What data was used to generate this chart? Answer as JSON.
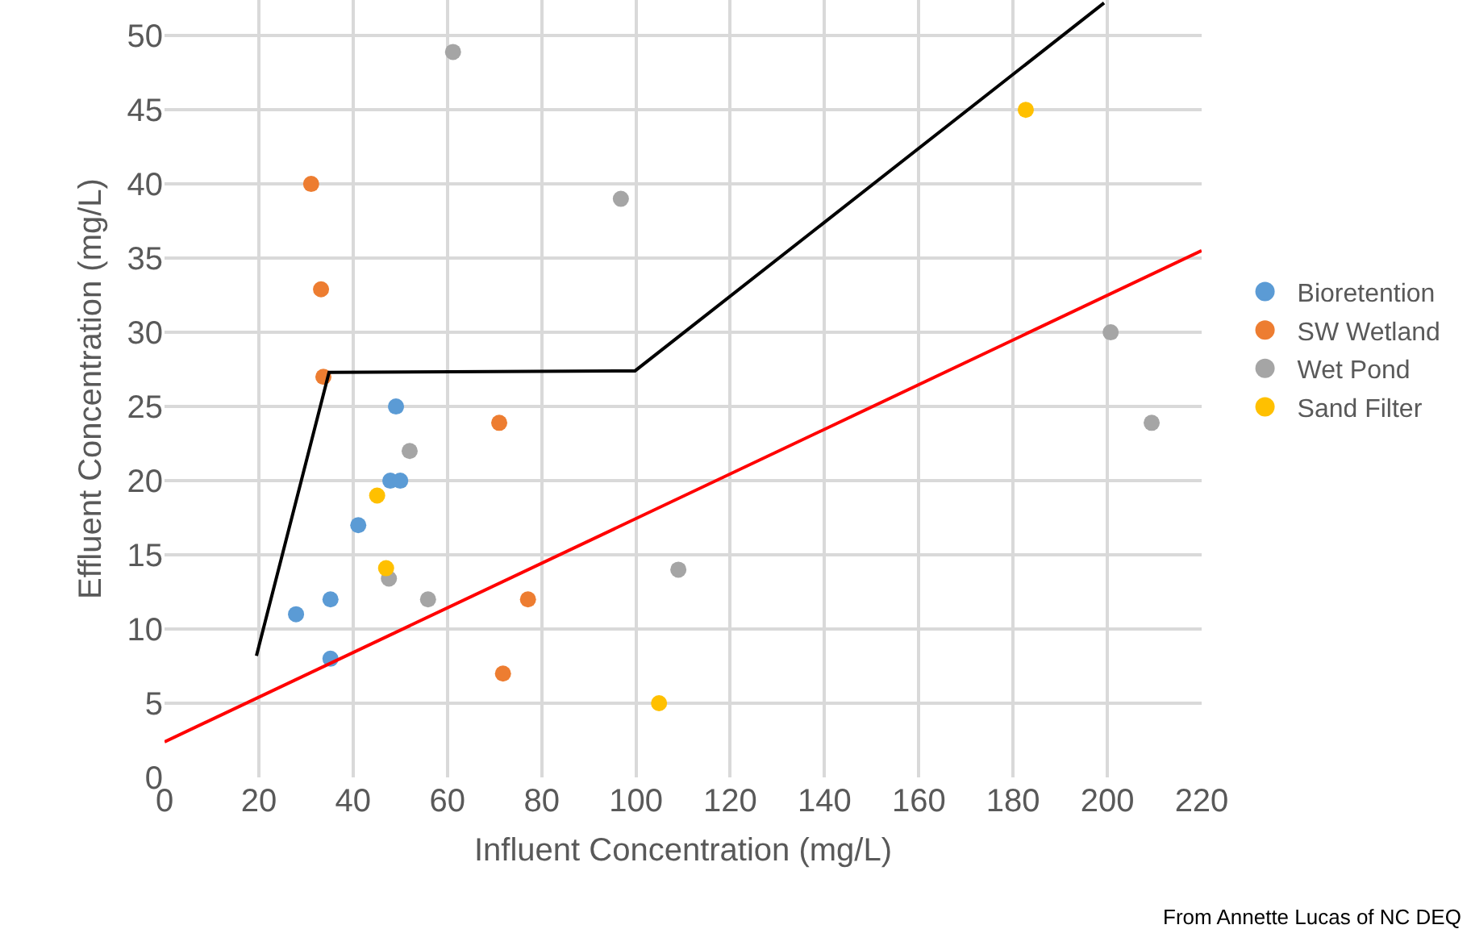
{
  "chart_data": {
    "type": "scatter",
    "xlabel": "Influent Concentration (mg/L)",
    "ylabel": "Effluent Concentration (mg/L)",
    "annotations": [
      "From Annette Lucas of NC DEQ"
    ],
    "xlim": [
      0,
      220
    ],
    "xticks": [
      0,
      20,
      40,
      60,
      80,
      100,
      120,
      140,
      160,
      180,
      200,
      220
    ],
    "ylim": [
      0,
      52.4
    ],
    "yticks": [
      0,
      5,
      10,
      15,
      20,
      25,
      30,
      35,
      40,
      45,
      50
    ],
    "grid": true,
    "legend": "right",
    "marker": "circle",
    "series": [
      {
        "name": "Bioretention",
        "color": "#5b9bd5",
        "x": [
          27.9,
          35.2,
          35.2,
          41.1,
          47.9,
          50.0,
          49.1
        ],
        "values": [
          11.0,
          12.0,
          8.0,
          17.0,
          20.0,
          20.0,
          25.0
        ]
      },
      {
        "name": "SW Wetland",
        "color": "#ed7d31",
        "x": [
          31.1,
          33.2,
          33.7,
          71.0,
          77.1,
          71.8
        ],
        "values": [
          40.0,
          32.9,
          27.0,
          23.9,
          12.0,
          7.0
        ]
      },
      {
        "name": "Wet Pond",
        "color": "#a5a5a5",
        "x": [
          61.2,
          96.8,
          52.0,
          47.6,
          55.9,
          109.0,
          200.7,
          209.4
        ],
        "values": [
          48.9,
          39.0,
          22.0,
          13.4,
          12.0,
          14.0,
          30.0,
          23.9
        ]
      },
      {
        "name": "Sand Filter",
        "color": "#ffc000",
        "x": [
          45.1,
          47.0,
          104.9,
          182.7
        ],
        "values": [
          19.0,
          14.1,
          5.0,
          45.0
        ]
      },
      {
        "type": "line",
        "marker": "none",
        "color": "#000000",
        "x": [
          19.5,
          34.9,
          99.8,
          199.3
        ],
        "values": [
          8.2,
          27.3,
          27.4,
          52.2
        ]
      },
      {
        "type": "line",
        "marker": "none",
        "color": "#ff0000",
        "x": [
          0,
          220
        ],
        "values": [
          2.4,
          35.5
        ]
      }
    ]
  }
}
